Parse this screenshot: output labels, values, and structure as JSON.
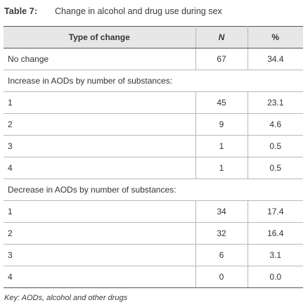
{
  "caption": {
    "number": "Table 7:",
    "title": "Change in alcohol and drug use during sex"
  },
  "table": {
    "headers": [
      "Type of change",
      "N",
      "%"
    ],
    "rows": [
      {
        "type": "No change",
        "n": "67",
        "pct": "34.4",
        "section": false
      },
      {
        "type": "Increase in AODs by number of substances:",
        "n": "",
        "pct": "",
        "section": true
      },
      {
        "type": "1",
        "n": "45",
        "pct": "23.1",
        "section": false
      },
      {
        "type": "2",
        "n": "9",
        "pct": "4.6",
        "section": false
      },
      {
        "type": "3",
        "n": "1",
        "pct": "0.5",
        "section": false
      },
      {
        "type": "4",
        "n": "1",
        "pct": "0.5",
        "section": false
      },
      {
        "type": "Decrease in AODs by number of substances:",
        "n": "",
        "pct": "",
        "section": true
      },
      {
        "type": "1",
        "n": "34",
        "pct": "17.4",
        "section": false
      },
      {
        "type": "2",
        "n": "32",
        "pct": "16.4",
        "section": false
      },
      {
        "type": "3",
        "n": "6",
        "pct": "3.1",
        "section": false
      },
      {
        "type": "4",
        "n": "0",
        "pct": "0.0",
        "section": false
      }
    ]
  },
  "footnote": "Key: AODs, alcohol and other drugs"
}
